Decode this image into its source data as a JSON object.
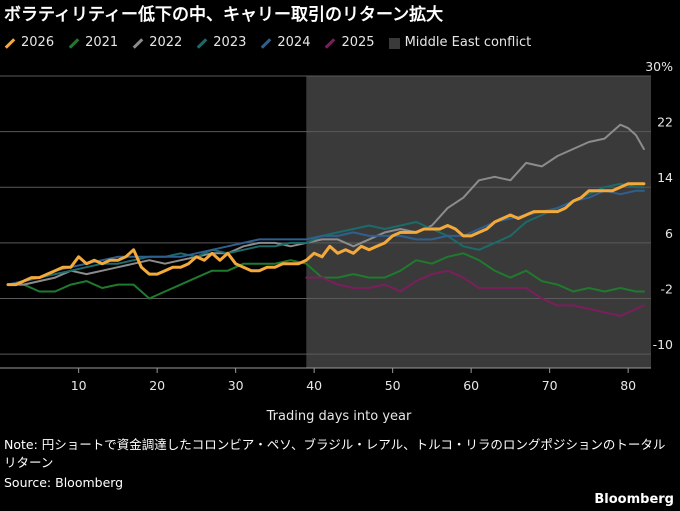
{
  "header": {
    "title": "ボラティリティー低下の中、キャリー取引のリターン拡大"
  },
  "chart_data": {
    "type": "line",
    "title": "ボラティリティー低下の中、キャリー取引のリターン拡大",
    "xlabel": "Trading days into year",
    "ylabel": "",
    "xlim": [
      0,
      83
    ],
    "ylim": [
      -12,
      30
    ],
    "x_ticks": [
      10,
      20,
      30,
      40,
      50,
      60,
      70,
      80
    ],
    "y_ticks": [
      "30%",
      "22",
      "14",
      "6",
      "-2",
      "-10"
    ],
    "y_tick_values": [
      30,
      22,
      14,
      6,
      -2,
      -10
    ],
    "grid": "horizontal",
    "legend_position": "top-left",
    "shaded_region": {
      "name": "Middle East conflict",
      "x_start": 39,
      "x_end": 82,
      "color": "#3a3a3a"
    },
    "series": [
      {
        "name": "2026",
        "color": "#f4a93b",
        "width": 3,
        "x": [
          1,
          2,
          3,
          4,
          5,
          6,
          7,
          8,
          9,
          10,
          11,
          12,
          13,
          14,
          15,
          16,
          17,
          18,
          19,
          20,
          21,
          22,
          23,
          24,
          25,
          26,
          27,
          28,
          29,
          30,
          31,
          32,
          33,
          34,
          35,
          36,
          37,
          38,
          39,
          40,
          41,
          42,
          43,
          44,
          45,
          46,
          47,
          48,
          49,
          50,
          51,
          52,
          53,
          54,
          55,
          56,
          57,
          58,
          59,
          60,
          61,
          62,
          63,
          64,
          65,
          66,
          67,
          68,
          69,
          70,
          71,
          72,
          73,
          74,
          75,
          76,
          77,
          78,
          79,
          80,
          81,
          82
        ],
        "values": [
          0,
          0,
          0.5,
          1,
          1,
          1.5,
          2,
          2.5,
          2.5,
          4,
          3,
          3.5,
          3,
          3.5,
          3.5,
          4,
          5,
          2.5,
          1.5,
          1.5,
          2,
          2.5,
          2.5,
          3,
          4,
          3.5,
          4.5,
          3.5,
          4.5,
          3,
          2.5,
          2,
          2,
          2.5,
          2.5,
          3,
          3,
          3,
          3.5,
          4.5,
          4,
          5.5,
          4.5,
          5,
          4.5,
          5.5,
          5,
          5.5,
          6,
          7,
          7.5,
          7.5,
          7.5,
          8,
          8,
          8,
          8.5,
          8,
          7,
          7,
          7.5,
          8,
          9,
          9.5,
          10,
          9.5,
          10,
          10.5,
          10.5,
          10.5,
          10.5,
          11,
          12,
          12.5,
          13.5,
          13.5,
          13.5,
          13.5,
          14,
          14.5,
          14.5,
          14.5
        ]
      },
      {
        "name": "2021",
        "color": "#1f7a2e",
        "width": 2,
        "x": [
          1,
          3,
          5,
          7,
          9,
          11,
          13,
          15,
          17,
          19,
          21,
          23,
          25,
          27,
          29,
          31,
          33,
          35,
          37,
          39,
          41,
          43,
          45,
          47,
          49,
          51,
          53,
          55,
          57,
          59,
          61,
          63,
          65,
          67,
          69,
          71,
          73,
          75,
          77,
          79,
          81,
          82
        ],
        "values": [
          0,
          0,
          -1,
          -1,
          0,
          0.5,
          -0.5,
          0,
          0,
          -2,
          -1,
          0,
          1,
          2,
          2,
          3,
          3,
          3,
          3.5,
          3,
          1,
          1,
          1.5,
          1,
          1,
          2,
          3.5,
          3,
          4,
          4.5,
          3.5,
          2,
          1,
          2,
          0.5,
          0,
          -1,
          -0.5,
          -1,
          -0.5,
          -1,
          -1
        ]
      },
      {
        "name": "2022",
        "color": "#8c8c8c",
        "width": 2,
        "x": [
          1,
          3,
          5,
          7,
          9,
          11,
          13,
          15,
          17,
          19,
          21,
          23,
          25,
          27,
          29,
          31,
          33,
          35,
          37,
          39,
          41,
          43,
          45,
          47,
          49,
          51,
          53,
          55,
          57,
          59,
          61,
          63,
          65,
          67,
          69,
          71,
          73,
          75,
          77,
          78,
          79,
          80,
          81,
          82
        ],
        "values": [
          0,
          0,
          0.5,
          1,
          2,
          1.5,
          2,
          2.5,
          3,
          3.5,
          3,
          3.5,
          4,
          4.5,
          4.5,
          5.5,
          6,
          6,
          5.5,
          6,
          6.5,
          6.5,
          5.5,
          6.5,
          7.5,
          8,
          7.5,
          8.5,
          11,
          12.5,
          15,
          15.5,
          15,
          17.5,
          17,
          18.5,
          19.5,
          20.5,
          21,
          22,
          23,
          22.5,
          21.5,
          19.5
        ]
      },
      {
        "name": "2023",
        "color": "#1b6b6b",
        "width": 2,
        "x": [
          1,
          3,
          5,
          7,
          9,
          11,
          13,
          15,
          17,
          19,
          21,
          23,
          25,
          27,
          29,
          31,
          33,
          35,
          37,
          39,
          41,
          43,
          45,
          47,
          49,
          51,
          53,
          55,
          57,
          59,
          61,
          63,
          65,
          67,
          69,
          71,
          73,
          75,
          77,
          79,
          81,
          82
        ],
        "values": [
          0,
          0.5,
          1,
          1.5,
          2,
          2.5,
          3,
          3,
          3.5,
          4,
          4,
          4.5,
          4,
          5,
          4.5,
          5,
          5.5,
          5.5,
          6,
          6,
          7,
          7.5,
          8,
          8.5,
          8,
          8.5,
          9,
          8,
          7,
          5.5,
          5,
          6,
          7,
          9,
          10,
          11,
          12,
          13,
          14,
          14.5,
          14,
          14
        ]
      },
      {
        "name": "2024",
        "color": "#2f5f8f",
        "width": 2,
        "x": [
          1,
          3,
          5,
          7,
          9,
          11,
          13,
          15,
          17,
          19,
          21,
          23,
          25,
          27,
          29,
          31,
          33,
          35,
          37,
          39,
          41,
          43,
          45,
          47,
          49,
          51,
          53,
          55,
          57,
          59,
          61,
          63,
          65,
          67,
          69,
          71,
          73,
          75,
          77,
          79,
          81,
          82
        ],
        "values": [
          0,
          0.5,
          1,
          2,
          2.5,
          3,
          3.5,
          4,
          4,
          4,
          4,
          4,
          4.5,
          5,
          5.5,
          6,
          6.5,
          6.5,
          6.5,
          6.5,
          7,
          7,
          7.5,
          7,
          7,
          7,
          6.5,
          6.5,
          7,
          7,
          8,
          9,
          9.5,
          10,
          10.5,
          11,
          12,
          12.5,
          13.5,
          13,
          13.5,
          13.5
        ]
      },
      {
        "name": "2025",
        "color": "#7a1f5c",
        "width": 2,
        "x": [
          39,
          41,
          43,
          45,
          47,
          49,
          51,
          53,
          55,
          57,
          59,
          61,
          63,
          65,
          67,
          69,
          71,
          73,
          75,
          77,
          79,
          81,
          82
        ],
        "values": [
          1,
          1,
          0,
          -0.5,
          -0.5,
          0,
          -1,
          0.5,
          1.5,
          2,
          1,
          -0.5,
          -0.5,
          -0.5,
          -0.5,
          -2,
          -3,
          -3,
          -3.5,
          -4,
          -4.5,
          -3.5,
          -3
        ]
      }
    ]
  },
  "legend": {
    "items": [
      {
        "label": "2026",
        "color": "#f4a93b",
        "kind": "line"
      },
      {
        "label": "2021",
        "color": "#1f7a2e",
        "kind": "line"
      },
      {
        "label": "2022",
        "color": "#8c8c8c",
        "kind": "line"
      },
      {
        "label": "2023",
        "color": "#1b6b6b",
        "kind": "line"
      },
      {
        "label": "2024",
        "color": "#2f5f8f",
        "kind": "line"
      },
      {
        "label": "2025",
        "color": "#7a1f5c",
        "kind": "line"
      },
      {
        "label": "Middle East conflict",
        "color": "#3a3a3a",
        "kind": "box"
      }
    ]
  },
  "footer": {
    "note": "Note: 円ショートで資金調達したコロンビア・ペソ、ブラジル・レアル、トルコ・リラのロングポジションのトータルリターン",
    "source": "Source: Bloomberg",
    "brand": "Bloomberg"
  }
}
